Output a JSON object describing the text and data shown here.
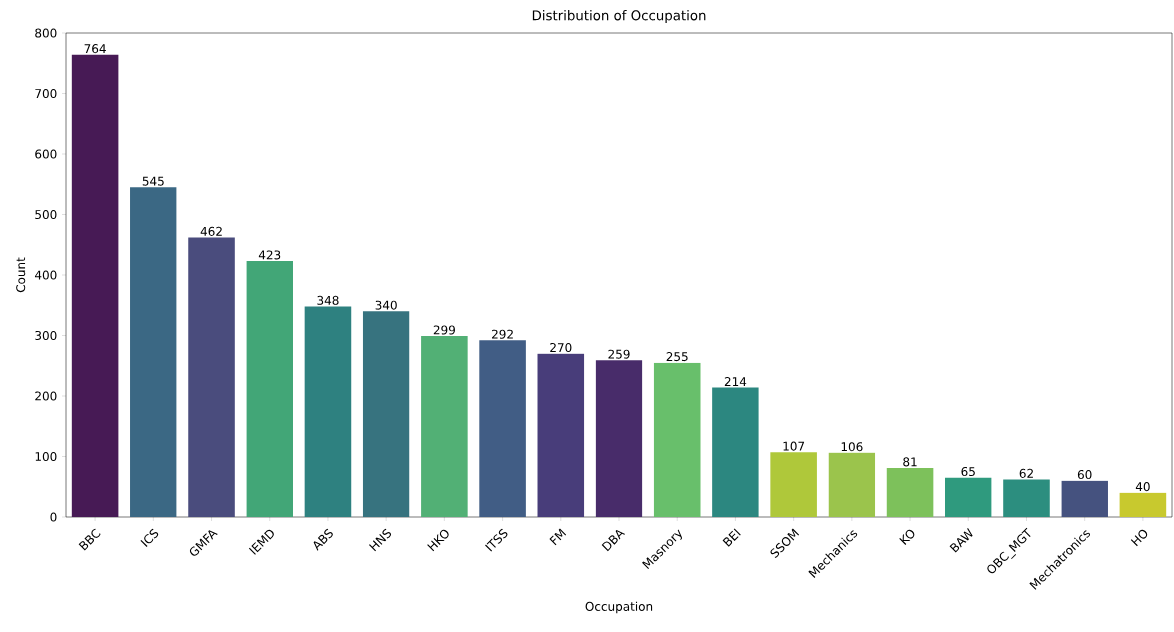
{
  "chart_data": {
    "type": "bar",
    "title": "Distribution of Occupation",
    "xlabel": "Occupation",
    "ylabel": "Count",
    "categories": [
      "BBC",
      "ICS",
      "GMFA",
      "IEMD",
      "ABS",
      "HNS",
      "HKO",
      "ITSS",
      "FM",
      "DBA",
      "Masnory",
      "BEI",
      "SSOM",
      "Mechanics",
      "KO",
      "BAW",
      "OBC_MGT",
      "Mechatronics",
      "HO"
    ],
    "values": [
      764,
      545,
      462,
      423,
      348,
      340,
      299,
      292,
      270,
      259,
      255,
      214,
      107,
      106,
      81,
      65,
      62,
      60,
      40
    ],
    "colors": [
      "#471a55",
      "#3b6884",
      "#4a4c7d",
      "#42a677",
      "#2e8180",
      "#37737f",
      "#52b075",
      "#415d85",
      "#483d7a",
      "#482c6a",
      "#68bf6b",
      "#2c8780",
      "#afc83a",
      "#9bc44c",
      "#7dc15b",
      "#2f9a7e",
      "#2c8e7f",
      "#45527f",
      "#c8c92e"
    ],
    "ylim": [
      0,
      800
    ],
    "yticks": [
      0,
      100,
      200,
      300,
      400,
      500,
      600,
      700,
      800
    ],
    "data_labels": true,
    "grid": false
  }
}
